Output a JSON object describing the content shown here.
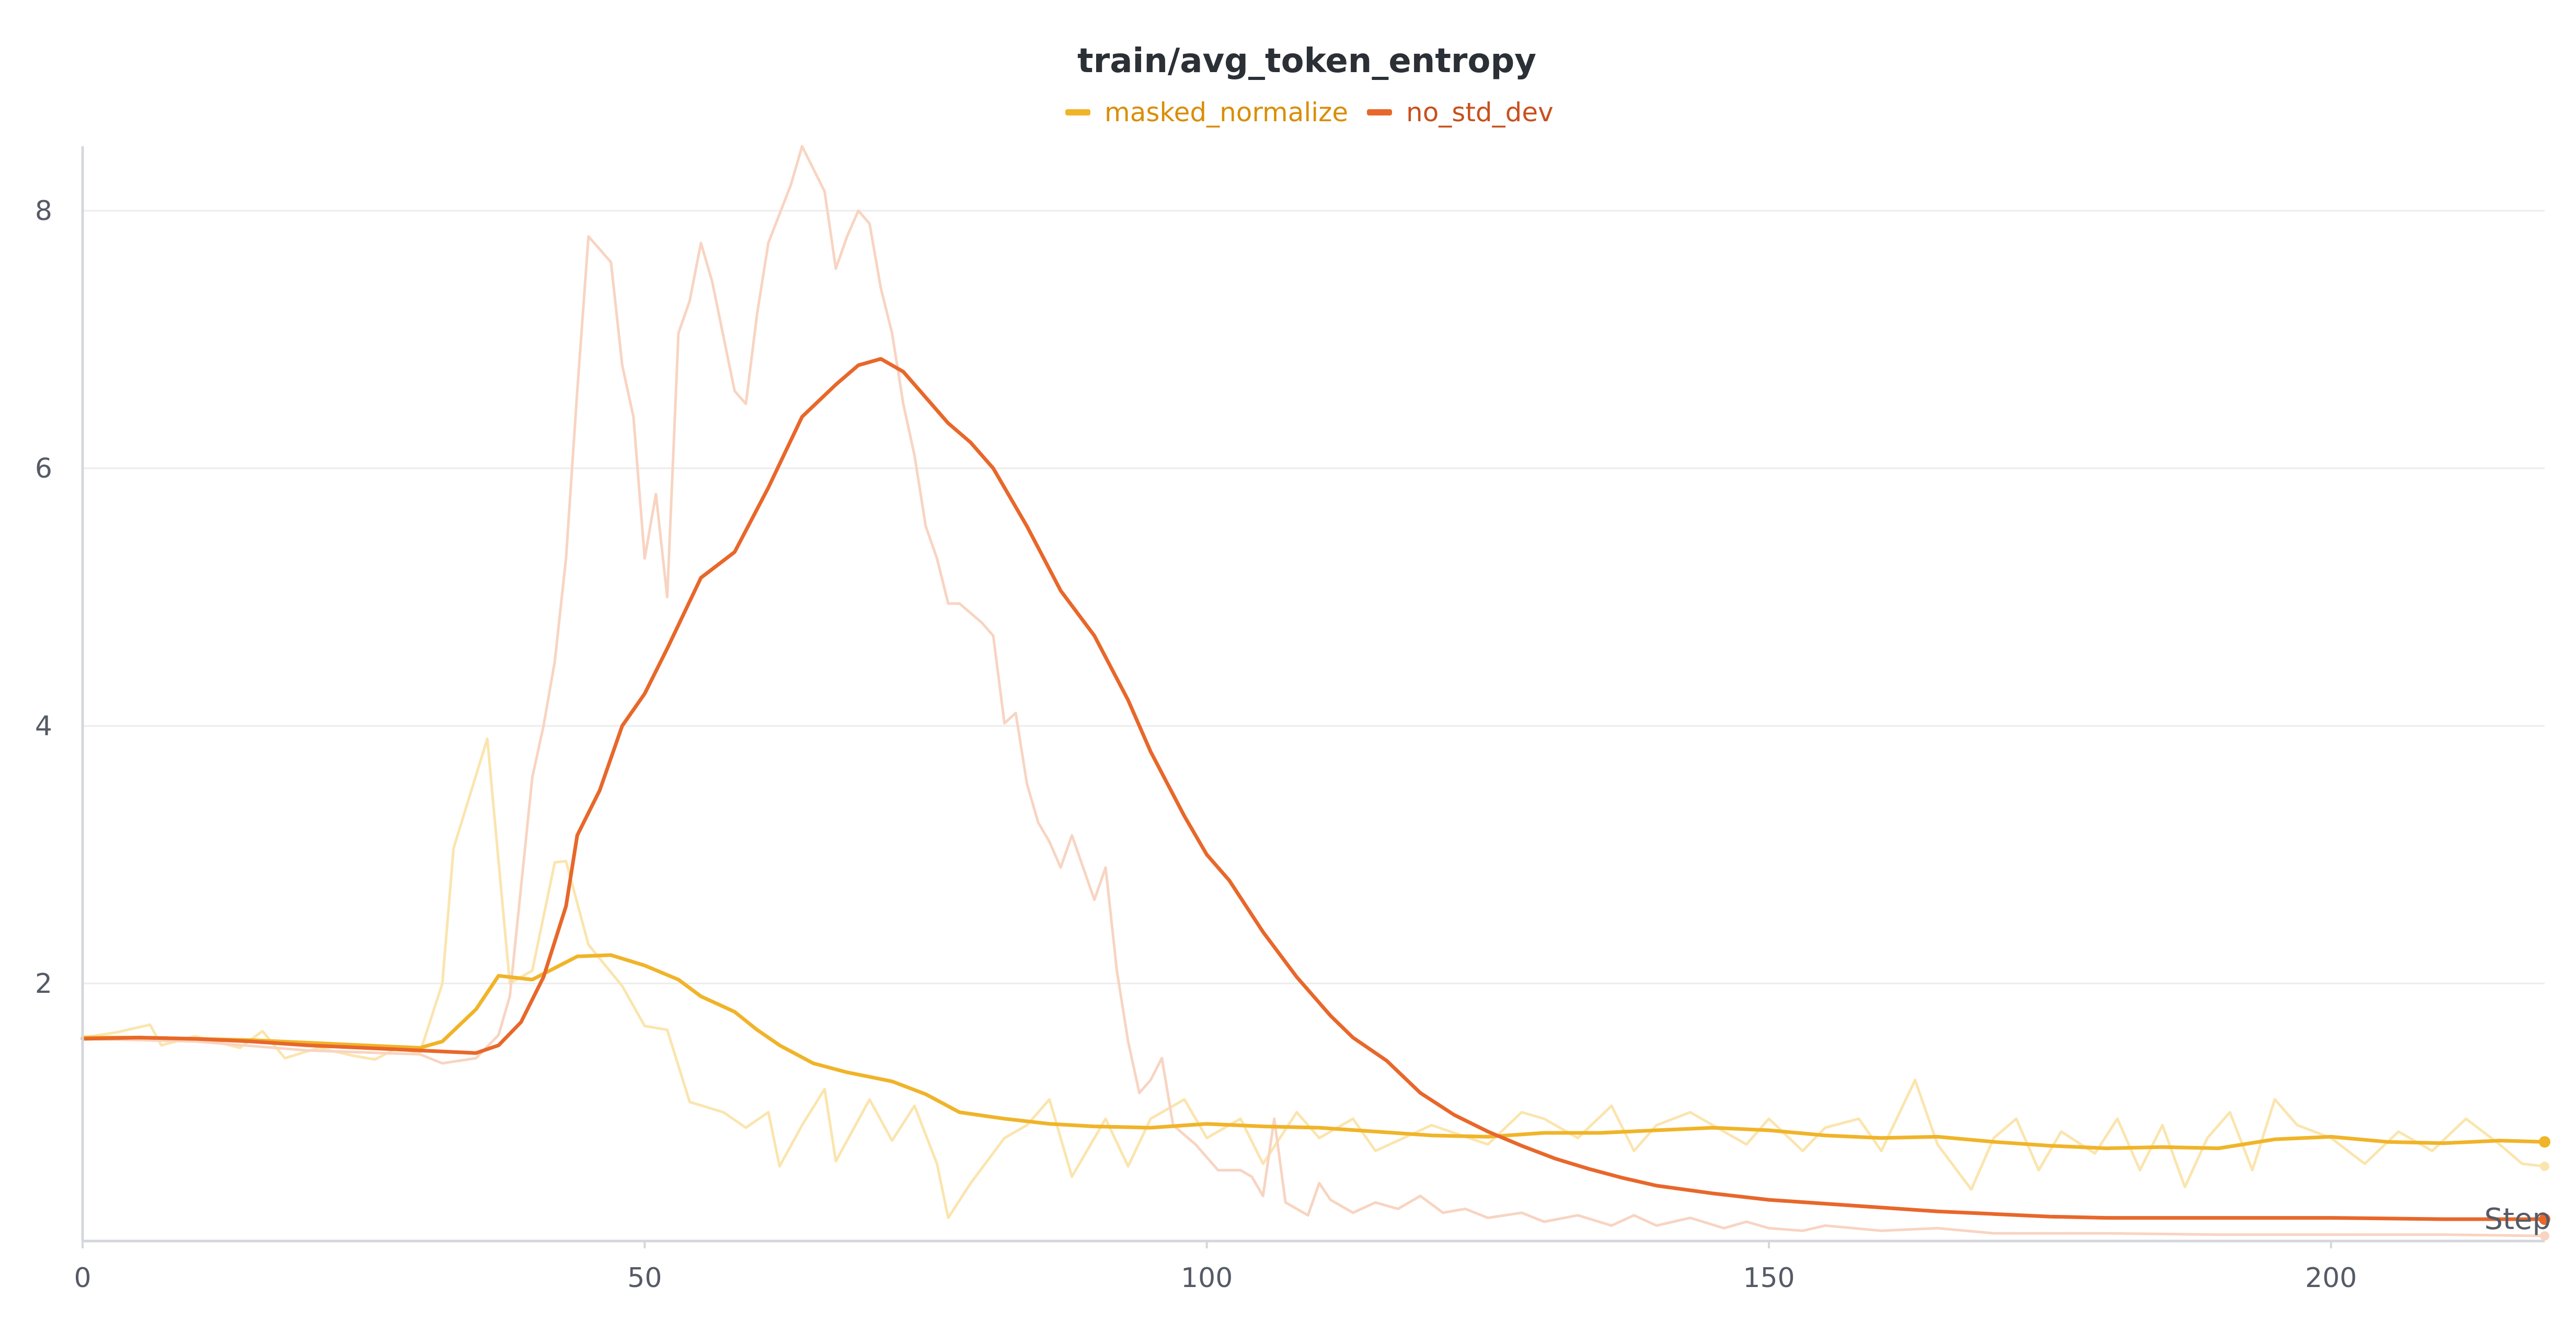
{
  "chart_data": {
    "type": "line",
    "title": "train/avg_token_entropy",
    "xlabel": "Step",
    "ylabel": "",
    "xlim": [
      0,
      219
    ],
    "ylim": [
      0,
      8.5
    ],
    "x_ticks": [
      0,
      50,
      100,
      150,
      200
    ],
    "y_ticks": [
      2,
      4,
      6,
      8
    ],
    "grid": true,
    "legend_position": "top-center",
    "colors": {
      "masked_normalize": "#f0b429",
      "no_std_dev": "#e8672a",
      "masked_normalize_raw": "#fbe5ae",
      "no_std_dev_raw": "#f8d4c1",
      "grid": "#ececec",
      "axis": "#d5d7dc"
    },
    "series": [
      {
        "name": "masked_normalize",
        "smoothed": [
          [
            0,
            1.58
          ],
          [
            5,
            1.58
          ],
          [
            10,
            1.57
          ],
          [
            15,
            1.56
          ],
          [
            20,
            1.54
          ],
          [
            25,
            1.52
          ],
          [
            30,
            1.5
          ],
          [
            32,
            1.55
          ],
          [
            35,
            1.8
          ],
          [
            37,
            2.06
          ],
          [
            40,
            2.03
          ],
          [
            42,
            2.12
          ],
          [
            44,
            2.21
          ],
          [
            47,
            2.22
          ],
          [
            50,
            2.14
          ],
          [
            53,
            2.03
          ],
          [
            55,
            1.9
          ],
          [
            58,
            1.78
          ],
          [
            60,
            1.64
          ],
          [
            62,
            1.52
          ],
          [
            65,
            1.38
          ],
          [
            68,
            1.31
          ],
          [
            72,
            1.24
          ],
          [
            75,
            1.14
          ],
          [
            78,
            1.0
          ],
          [
            82,
            0.95
          ],
          [
            86,
            0.91
          ],
          [
            90,
            0.89
          ],
          [
            95,
            0.88
          ],
          [
            100,
            0.91
          ],
          [
            105,
            0.89
          ],
          [
            110,
            0.88
          ],
          [
            115,
            0.85
          ],
          [
            120,
            0.82
          ],
          [
            125,
            0.81
          ],
          [
            130,
            0.84
          ],
          [
            135,
            0.84
          ],
          [
            140,
            0.86
          ],
          [
            145,
            0.88
          ],
          [
            150,
            0.86
          ],
          [
            155,
            0.82
          ],
          [
            160,
            0.8
          ],
          [
            165,
            0.81
          ],
          [
            170,
            0.77
          ],
          [
            175,
            0.74
          ],
          [
            180,
            0.72
          ],
          [
            185,
            0.73
          ],
          [
            190,
            0.72
          ],
          [
            195,
            0.79
          ],
          [
            200,
            0.81
          ],
          [
            205,
            0.77
          ],
          [
            210,
            0.76
          ],
          [
            215,
            0.78
          ],
          [
            219,
            0.77
          ]
        ],
        "raw": [
          [
            0,
            1.58
          ],
          [
            3,
            1.62
          ],
          [
            6,
            1.68
          ],
          [
            7,
            1.52
          ],
          [
            10,
            1.59
          ],
          [
            14,
            1.5
          ],
          [
            16,
            1.63
          ],
          [
            18,
            1.42
          ],
          [
            21,
            1.5
          ],
          [
            24,
            1.44
          ],
          [
            26,
            1.41
          ],
          [
            28,
            1.5
          ],
          [
            30,
            1.46
          ],
          [
            32,
            2.0
          ],
          [
            33,
            3.05
          ],
          [
            36,
            3.9
          ],
          [
            38,
            2.0
          ],
          [
            40,
            2.1
          ],
          [
            42,
            2.94
          ],
          [
            43,
            2.95
          ],
          [
            45,
            2.3
          ],
          [
            48,
            1.98
          ],
          [
            50,
            1.67
          ],
          [
            52,
            1.64
          ],
          [
            54,
            1.08
          ],
          [
            57,
            1.0
          ],
          [
            59,
            0.88
          ],
          [
            61,
            1.0
          ],
          [
            62,
            0.58
          ],
          [
            64,
            0.9
          ],
          [
            66,
            1.18
          ],
          [
            67,
            0.62
          ],
          [
            70,
            1.1
          ],
          [
            72,
            0.78
          ],
          [
            74,
            1.05
          ],
          [
            76,
            0.6
          ],
          [
            77,
            0.18
          ],
          [
            79,
            0.45
          ],
          [
            82,
            0.8
          ],
          [
            84,
            0.9
          ],
          [
            86,
            1.1
          ],
          [
            88,
            0.5
          ],
          [
            91,
            0.95
          ],
          [
            93,
            0.58
          ],
          [
            95,
            0.95
          ],
          [
            98,
            1.1
          ],
          [
            100,
            0.8
          ],
          [
            103,
            0.95
          ],
          [
            105,
            0.6
          ],
          [
            108,
            1.0
          ],
          [
            110,
            0.8
          ],
          [
            113,
            0.95
          ],
          [
            115,
            0.7
          ],
          [
            120,
            0.9
          ],
          [
            125,
            0.75
          ],
          [
            128,
            1.0
          ],
          [
            130,
            0.95
          ],
          [
            133,
            0.8
          ],
          [
            136,
            1.05
          ],
          [
            138,
            0.7
          ],
          [
            140,
            0.9
          ],
          [
            143,
            1.0
          ],
          [
            146,
            0.85
          ],
          [
            148,
            0.75
          ],
          [
            150,
            0.95
          ],
          [
            153,
            0.7
          ],
          [
            155,
            0.88
          ],
          [
            158,
            0.95
          ],
          [
            160,
            0.7
          ],
          [
            163,
            1.25
          ],
          [
            165,
            0.75
          ],
          [
            168,
            0.4
          ],
          [
            170,
            0.8
          ],
          [
            172,
            0.95
          ],
          [
            174,
            0.55
          ],
          [
            176,
            0.85
          ],
          [
            179,
            0.68
          ],
          [
            181,
            0.95
          ],
          [
            183,
            0.55
          ],
          [
            185,
            0.9
          ],
          [
            187,
            0.42
          ],
          [
            189,
            0.8
          ],
          [
            191,
            1.0
          ],
          [
            193,
            0.55
          ],
          [
            195,
            1.1
          ],
          [
            197,
            0.9
          ],
          [
            200,
            0.8
          ],
          [
            203,
            0.6
          ],
          [
            206,
            0.85
          ],
          [
            209,
            0.7
          ],
          [
            212,
            0.95
          ],
          [
            215,
            0.75
          ],
          [
            217,
            0.6
          ],
          [
            219,
            0.58
          ]
        ]
      },
      {
        "name": "no_std_dev",
        "smoothed": [
          [
            0,
            1.57
          ],
          [
            5,
            1.58
          ],
          [
            10,
            1.57
          ],
          [
            15,
            1.55
          ],
          [
            20,
            1.52
          ],
          [
            25,
            1.5
          ],
          [
            30,
            1.48
          ],
          [
            35,
            1.46
          ],
          [
            37,
            1.52
          ],
          [
            39,
            1.7
          ],
          [
            41,
            2.05
          ],
          [
            43,
            2.6
          ],
          [
            44,
            3.15
          ],
          [
            46,
            3.5
          ],
          [
            48,
            4.0
          ],
          [
            50,
            4.25
          ],
          [
            52,
            4.6
          ],
          [
            55,
            5.15
          ],
          [
            58,
            5.35
          ],
          [
            61,
            5.85
          ],
          [
            64,
            6.4
          ],
          [
            67,
            6.65
          ],
          [
            69,
            6.8
          ],
          [
            71,
            6.85
          ],
          [
            73,
            6.75
          ],
          [
            75,
            6.55
          ],
          [
            77,
            6.35
          ],
          [
            79,
            6.2
          ],
          [
            81,
            6.0
          ],
          [
            84,
            5.55
          ],
          [
            87,
            5.05
          ],
          [
            90,
            4.7
          ],
          [
            93,
            4.2
          ],
          [
            95,
            3.8
          ],
          [
            98,
            3.3
          ],
          [
            100,
            3.0
          ],
          [
            102,
            2.8
          ],
          [
            105,
            2.4
          ],
          [
            108,
            2.05
          ],
          [
            111,
            1.75
          ],
          [
            113,
            1.58
          ],
          [
            116,
            1.4
          ],
          [
            119,
            1.15
          ],
          [
            122,
            0.98
          ],
          [
            125,
            0.85
          ],
          [
            128,
            0.74
          ],
          [
            131,
            0.64
          ],
          [
            134,
            0.56
          ],
          [
            137,
            0.49
          ],
          [
            140,
            0.43
          ],
          [
            145,
            0.37
          ],
          [
            150,
            0.32
          ],
          [
            155,
            0.29
          ],
          [
            160,
            0.26
          ],
          [
            165,
            0.23
          ],
          [
            170,
            0.21
          ],
          [
            175,
            0.19
          ],
          [
            180,
            0.18
          ],
          [
            190,
            0.18
          ],
          [
            200,
            0.18
          ],
          [
            210,
            0.17
          ],
          [
            219,
            0.17
          ]
        ],
        "raw": [
          [
            0,
            1.57
          ],
          [
            10,
            1.55
          ],
          [
            20,
            1.48
          ],
          [
            30,
            1.45
          ],
          [
            32,
            1.38
          ],
          [
            35,
            1.42
          ],
          [
            37,
            1.6
          ],
          [
            38,
            1.9
          ],
          [
            40,
            3.6
          ],
          [
            41,
            4.0
          ],
          [
            42,
            4.5
          ],
          [
            43,
            5.3
          ],
          [
            44,
            6.6
          ],
          [
            45,
            7.8
          ],
          [
            47,
            7.6
          ],
          [
            48,
            6.8
          ],
          [
            49,
            6.4
          ],
          [
            50,
            5.3
          ],
          [
            51,
            5.8
          ],
          [
            52,
            5.0
          ],
          [
            53,
            7.05
          ],
          [
            54,
            7.3
          ],
          [
            55,
            7.75
          ],
          [
            56,
            7.45
          ],
          [
            58,
            6.6
          ],
          [
            59,
            6.5
          ],
          [
            60,
            7.2
          ],
          [
            61,
            7.75
          ],
          [
            63,
            8.2
          ],
          [
            64,
            8.5
          ],
          [
            66,
            8.15
          ],
          [
            67,
            7.55
          ],
          [
            68,
            7.8
          ],
          [
            69,
            8.0
          ],
          [
            70,
            7.9
          ],
          [
            71,
            7.4
          ],
          [
            72,
            7.05
          ],
          [
            73,
            6.5
          ],
          [
            74,
            6.1
          ],
          [
            75,
            5.55
          ],
          [
            76,
            5.3
          ],
          [
            77,
            4.95
          ],
          [
            78,
            4.95
          ],
          [
            80,
            4.8
          ],
          [
            81,
            4.7
          ],
          [
            82,
            4.02
          ],
          [
            83,
            4.1
          ],
          [
            84,
            3.55
          ],
          [
            85,
            3.25
          ],
          [
            86,
            3.1
          ],
          [
            87,
            2.9
          ],
          [
            88,
            3.15
          ],
          [
            90,
            2.65
          ],
          [
            91,
            2.9
          ],
          [
            92,
            2.1
          ],
          [
            93,
            1.55
          ],
          [
            94,
            1.15
          ],
          [
            95,
            1.25
          ],
          [
            96,
            1.42
          ],
          [
            97,
            0.9
          ],
          [
            99,
            0.75
          ],
          [
            101,
            0.55
          ],
          [
            103,
            0.55
          ],
          [
            104,
            0.5
          ],
          [
            105,
            0.35
          ],
          [
            106,
            0.95
          ],
          [
            107,
            0.3
          ],
          [
            109,
            0.2
          ],
          [
            110,
            0.45
          ],
          [
            111,
            0.32
          ],
          [
            113,
            0.22
          ],
          [
            115,
            0.3
          ],
          [
            117,
            0.25
          ],
          [
            119,
            0.35
          ],
          [
            121,
            0.22
          ],
          [
            123,
            0.25
          ],
          [
            125,
            0.18
          ],
          [
            128,
            0.22
          ],
          [
            130,
            0.15
          ],
          [
            133,
            0.2
          ],
          [
            136,
            0.12
          ],
          [
            138,
            0.2
          ],
          [
            140,
            0.12
          ],
          [
            143,
            0.18
          ],
          [
            146,
            0.1
          ],
          [
            148,
            0.15
          ],
          [
            150,
            0.1
          ],
          [
            153,
            0.08
          ],
          [
            155,
            0.12
          ],
          [
            160,
            0.08
          ],
          [
            165,
            0.1
          ],
          [
            170,
            0.06
          ],
          [
            180,
            0.06
          ],
          [
            190,
            0.05
          ],
          [
            200,
            0.05
          ],
          [
            210,
            0.05
          ],
          [
            219,
            0.04
          ]
        ]
      }
    ]
  }
}
